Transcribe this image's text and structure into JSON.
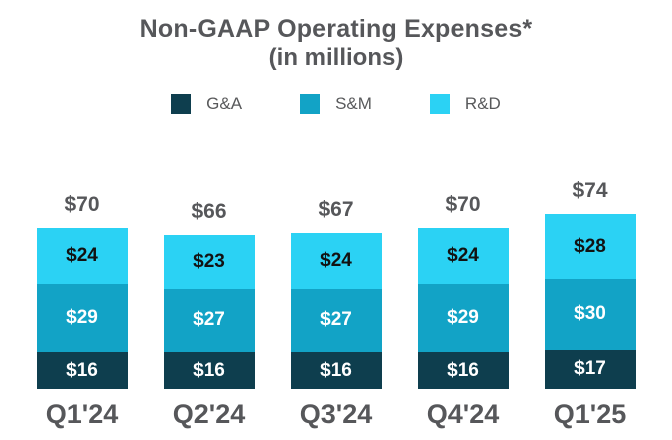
{
  "title": "Non-GAAP Operating Expenses*",
  "subtitle": "(in millions)",
  "chart_data": {
    "type": "bar",
    "stacked": true,
    "title": "Non-GAAP Operating Expenses*",
    "subtitle": "(in millions)",
    "categories": [
      "Q1'24",
      "Q2'24",
      "Q3'24",
      "Q4'24",
      "Q1'25"
    ],
    "series": [
      {
        "name": "G&A",
        "color": "#0e3e4e",
        "label_color": "#ffffff",
        "values": [
          16,
          16,
          16,
          16,
          17
        ]
      },
      {
        "name": "S&M",
        "color": "#12a3c6",
        "label_color": "#ffffff",
        "values": [
          29,
          27,
          27,
          29,
          30
        ]
      },
      {
        "name": "R&D",
        "color": "#2bd2f4",
        "label_color": "#121212",
        "values": [
          24,
          23,
          24,
          24,
          28
        ]
      }
    ],
    "totals": [
      70,
      66,
      67,
      70,
      74
    ],
    "value_prefix": "$",
    "ylim": [
      0,
      80
    ],
    "grid": false,
    "legend_position": "top",
    "xlabel": "",
    "ylabel": ""
  },
  "colors": {
    "text_gray": "#56575a",
    "background": "#ffffff"
  }
}
